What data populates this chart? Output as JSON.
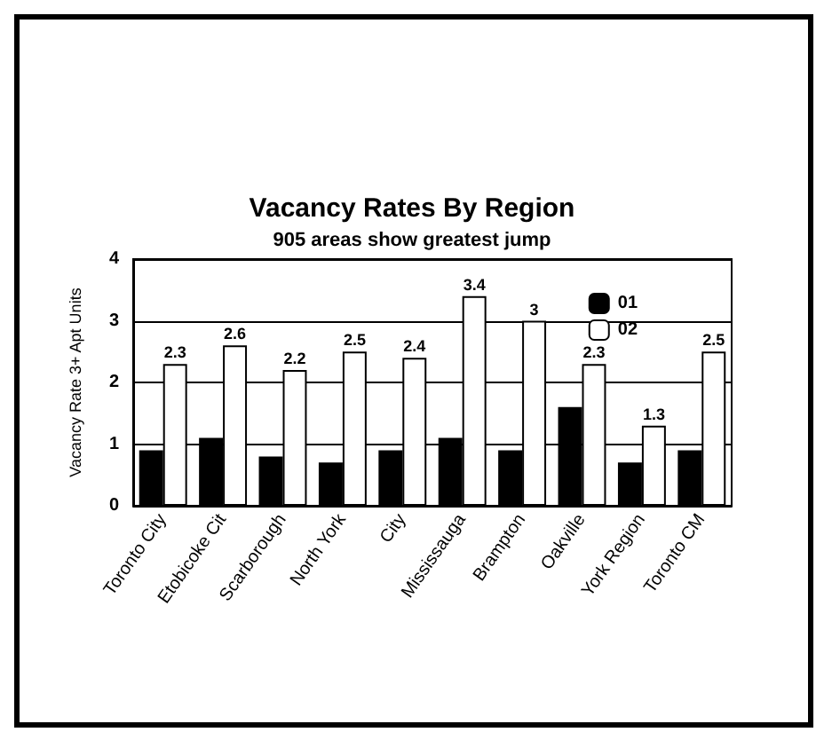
{
  "chart_data": {
    "type": "bar",
    "title": "Vacancy Rates By Region",
    "subtitle": "905 areas show greatest jump",
    "ylabel": "Vacancy Rate 3+ Apt Units",
    "categories": [
      "Toronto City",
      "Etobicoke Cit",
      "Scarborough",
      "North York",
      "City",
      "Mississauga",
      "Brampton",
      "Oakville",
      "York Region",
      "Toronto CM"
    ],
    "series": [
      {
        "name": "01",
        "color": "#000000",
        "values": [
          0.9,
          1.1,
          0.8,
          0.7,
          0.9,
          1.1,
          0.9,
          1.6,
          0.7,
          0.9
        ]
      },
      {
        "name": "02",
        "color": "#ffffff",
        "values": [
          2.3,
          2.6,
          2.2,
          2.5,
          2.4,
          3.4,
          3,
          2.3,
          1.3,
          2.5
        ],
        "value_labels": [
          "2.3",
          "2.6",
          "2.2",
          "2.5",
          "2.4",
          "3.4",
          "3",
          "2.3",
          "1.3",
          "2.5"
        ]
      }
    ],
    "ylim": [
      0,
      4
    ],
    "yticks": [
      0,
      1,
      2,
      3,
      4
    ],
    "grid": "y",
    "legend": "top right"
  }
}
